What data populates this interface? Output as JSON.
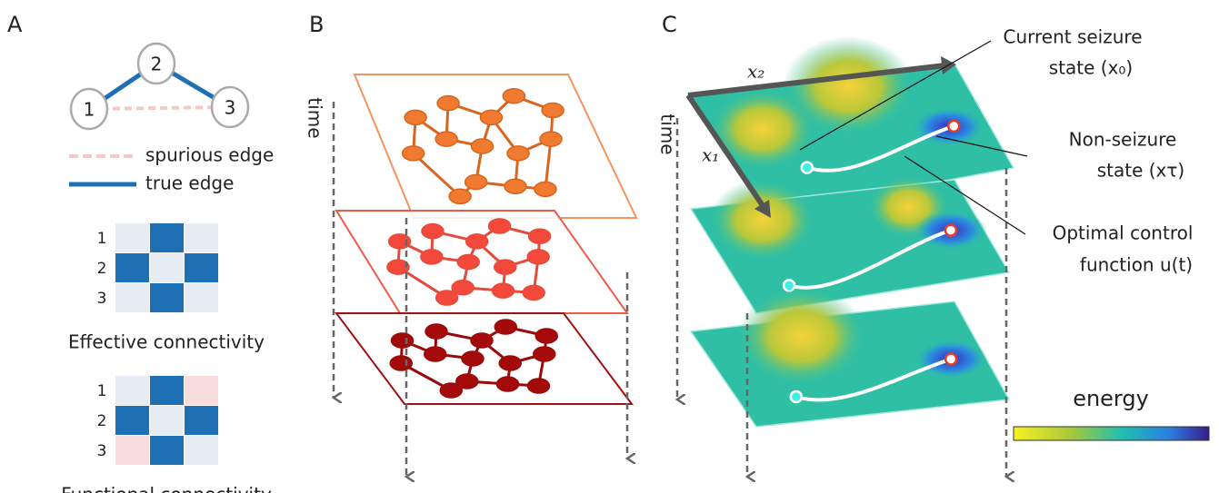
{
  "panels": {
    "a": {
      "label": "A",
      "nodes": [
        "1",
        "2",
        "3"
      ],
      "legend": [
        "spurious edge",
        "true edge"
      ],
      "matrices": [
        {
          "rows": [
            "1",
            "2",
            "3"
          ],
          "caption": "Effective connectivity"
        },
        {
          "rows": [
            "1",
            "2",
            "3"
          ],
          "caption": "Functional connectivity"
        }
      ]
    },
    "b": {
      "label": "B",
      "axis": "time"
    },
    "c": {
      "label": "C",
      "axis": "time",
      "x2": "x₂",
      "x1": "x₁",
      "annotations": [
        [
          "Current seizure",
          "state (x₀)"
        ],
        [
          "Non-seizure",
          "state (xτ)"
        ],
        [
          "Optimal control",
          "function u(t)"
        ]
      ],
      "colorbar": "energy"
    }
  }
}
